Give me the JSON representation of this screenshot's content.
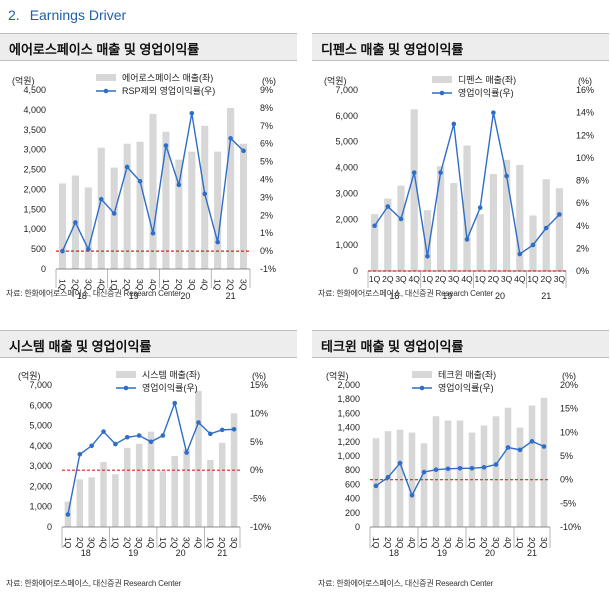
{
  "section": {
    "number": "2.",
    "title": "Earnings Driver"
  },
  "source": "자료: 한화에어로스페이스, 대신증권 Research Center",
  "colors": {
    "bar": "#d7d7d7",
    "line": "#2e6ec7",
    "zero": "#e01e1e",
    "accent": "#1f5fa8"
  },
  "chart_data": [
    {
      "type": "bar+line",
      "title": "에어로스페이스 매출 및 영업이익률",
      "left_unit": "(억원)",
      "right_unit": "(%)",
      "left_ticks": [
        "4,500",
        "4,000",
        "3,500",
        "3,000",
        "2,500",
        "2,000",
        "1,500",
        "1,000",
        "500",
        "0"
      ],
      "right_ticks": [
        "9%",
        "8%",
        "7%",
        "6%",
        "5%",
        "4%",
        "3%",
        "2%",
        "1%",
        "0%",
        "-1%"
      ],
      "ylim": [
        0,
        4500
      ],
      "y2lim": [
        -1,
        9
      ],
      "legend": [
        "에어로스페이스 매출(좌)",
        "RSP제외 영업이익률(우)"
      ],
      "categories": [
        "1Q",
        "2Q",
        "3Q",
        "4Q",
        "1Q",
        "2Q",
        "3Q",
        "4Q",
        "1Q",
        "2Q",
        "3Q",
        "4Q",
        "1Q",
        "2Q",
        "3Q"
      ],
      "years": [
        {
          "label": "18",
          "count": 4
        },
        {
          "label": "19",
          "count": 4
        },
        {
          "label": "20",
          "count": 4
        },
        {
          "label": "21",
          "count": 3
        }
      ],
      "bars": [
        2150,
        2350,
        2050,
        3050,
        2550,
        3150,
        3200,
        3900,
        3450,
        2750,
        2950,
        3600,
        2950,
        4050,
        3150
      ],
      "line": [
        0.0,
        1.6,
        0.1,
        2.9,
        2.1,
        4.7,
        3.9,
        1.0,
        5.9,
        3.7,
        7.7,
        3.2,
        0.5,
        6.3,
        5.6
      ]
    },
    {
      "type": "bar+line",
      "title": "디펜스 매출 및 영업이익률",
      "left_unit": "(억원)",
      "right_unit": "(%)",
      "left_ticks": [
        "7,000",
        "6,000",
        "5,000",
        "4,000",
        "3,000",
        "2,000",
        "1,000",
        "0"
      ],
      "right_ticks": [
        "16%",
        "14%",
        "12%",
        "10%",
        "8%",
        "6%",
        "4%",
        "2%",
        "0%"
      ],
      "ylim": [
        0,
        7000
      ],
      "y2lim": [
        0,
        16
      ],
      "legend": [
        "디펜스 매출(좌)",
        "영업이익률(우)"
      ],
      "categories": [
        "1Q",
        "2Q",
        "3Q",
        "4Q",
        "1Q",
        "2Q",
        "3Q",
        "4Q",
        "1Q",
        "2Q",
        "3Q",
        "4Q",
        "1Q",
        "2Q",
        "3Q"
      ],
      "years": [
        {
          "label": "18",
          "count": 4
        },
        {
          "label": "19",
          "count": 4
        },
        {
          "label": "20",
          "count": 4
        },
        {
          "label": "21",
          "count": 3
        }
      ],
      "bars": [
        2200,
        2800,
        3300,
        6250,
        2350,
        4050,
        3400,
        4850,
        2200,
        3750,
        4300,
        4100,
        2150,
        3550,
        3200
      ],
      "line": [
        4.0,
        5.7,
        4.6,
        8.7,
        1.3,
        8.7,
        13.0,
        2.8,
        5.6,
        14.0,
        8.4,
        1.5,
        2.3,
        3.8,
        5.0
      ]
    },
    {
      "type": "bar+line",
      "title": "시스템 매출 및 영업이익률",
      "left_unit": "(억원)",
      "right_unit": "(%)",
      "left_ticks": [
        "7,000",
        "6,000",
        "5,000",
        "4,000",
        "3,000",
        "2,000",
        "1,000",
        "0"
      ],
      "right_ticks": [
        "15%",
        "10%",
        "5%",
        "0%",
        "-5%",
        "-10%"
      ],
      "ylim": [
        0,
        7000
      ],
      "y2lim": [
        -10,
        15
      ],
      "legend": [
        "시스템 매출(좌)",
        "영업이익률(우)"
      ],
      "categories": [
        "1Q",
        "2Q",
        "3Q",
        "4Q",
        "1Q",
        "2Q",
        "3Q",
        "4Q",
        "1Q",
        "2Q",
        "3Q",
        "4Q",
        "1Q",
        "2Q",
        "3Q"
      ],
      "years": [
        {
          "label": "18",
          "count": 4
        },
        {
          "label": "19",
          "count": 4
        },
        {
          "label": "20",
          "count": 4
        },
        {
          "label": "21",
          "count": 3
        }
      ],
      "bars": [
        1250,
        2350,
        2450,
        3200,
        2600,
        3900,
        4100,
        4700,
        2750,
        3500,
        3850,
        6700,
        3300,
        4150,
        5600
      ],
      "line": [
        -7.8,
        2.8,
        4.3,
        6.8,
        4.6,
        5.8,
        6.1,
        5.0,
        6.1,
        11.8,
        3.1,
        8.4,
        6.4,
        7.1,
        7.2
      ]
    },
    {
      "type": "bar+line",
      "title": "테크윈 매출 및 영업이익률",
      "left_unit": "(억원)",
      "right_unit": "(%)",
      "left_ticks": [
        "2,000",
        "1,800",
        "1,600",
        "1,400",
        "1,200",
        "1,000",
        "800",
        "600",
        "400",
        "200",
        "0"
      ],
      "right_ticks": [
        "20%",
        "15%",
        "10%",
        "5%",
        "0%",
        "-5%",
        "-10%"
      ],
      "ylim": [
        0,
        2000
      ],
      "y2lim": [
        -10,
        20
      ],
      "legend": [
        "테크윈 매출(좌)",
        "영업이익률(우)"
      ],
      "categories": [
        "1Q",
        "2Q",
        "3Q",
        "4Q",
        "1Q",
        "2Q",
        "3Q",
        "4Q",
        "1Q",
        "2Q",
        "3Q",
        "4Q",
        "1Q",
        "2Q",
        "3Q"
      ],
      "years": [
        {
          "label": "18",
          "count": 4
        },
        {
          "label": "19",
          "count": 4
        },
        {
          "label": "20",
          "count": 4
        },
        {
          "label": "21",
          "count": 3
        }
      ],
      "bars": [
        1250,
        1350,
        1370,
        1330,
        1180,
        1560,
        1500,
        1500,
        1330,
        1430,
        1560,
        1680,
        1400,
        1710,
        1820
      ],
      "line": [
        -1.3,
        0.5,
        3.5,
        -3.3,
        1.6,
        2.1,
        2.3,
        2.4,
        2.4,
        2.6,
        3.2,
        6.8,
        6.3,
        8.1,
        7.0
      ]
    }
  ]
}
